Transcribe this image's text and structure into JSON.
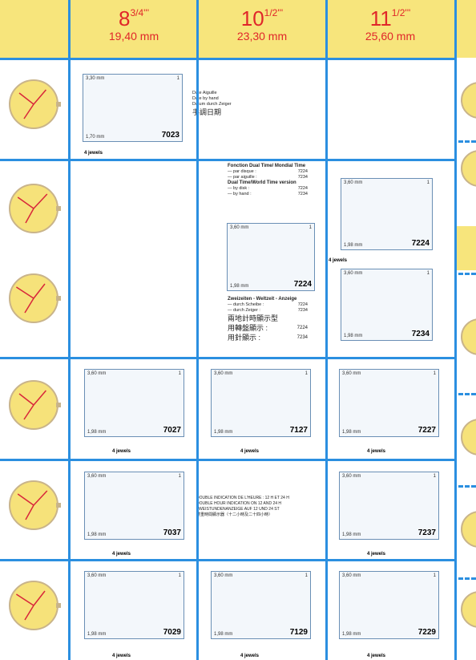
{
  "header": {
    "columns": [
      {
        "size": "8",
        "fraction": "3/4'''",
        "diameter": "19,40 mm"
      },
      {
        "size": "10",
        "fraction": "1/2'''",
        "diameter": "23,30 mm"
      },
      {
        "size": "11",
        "fraction": "1/2'''",
        "diameter": "25,60 mm"
      }
    ]
  },
  "movements": [
    {
      "height": "3,30 mm",
      "base": "1,70 mm",
      "count": "1",
      "caliber": "7023",
      "jewels": "4 jewels"
    },
    {
      "height": "3,60 mm",
      "base": "1,98 mm",
      "count": "1",
      "caliber": "7224"
    },
    {
      "height": "3,60 mm",
      "base": "1,98 mm",
      "count": "1",
      "caliber": "7224",
      "jewels": "4 jewels"
    },
    {
      "height": "3,60 mm",
      "base": "1,98 mm",
      "count": "1",
      "caliber": "7234"
    },
    {
      "height": "3,60 mm",
      "base": "1,98 mm",
      "count": "1",
      "caliber": "7027",
      "jewels": "4 jewels"
    },
    {
      "height": "3,60 mm",
      "base": "1,98 mm",
      "count": "1",
      "caliber": "7127",
      "jewels": "4 jewels"
    },
    {
      "height": "3,60 mm",
      "base": "1,98 mm",
      "count": "1",
      "caliber": "7227",
      "jewels": "4 jewels"
    },
    {
      "height": "3,60 mm",
      "base": "1,98 mm",
      "count": "1",
      "caliber": "7037",
      "jewels": "4 jewels"
    },
    {
      "height": "3,60 mm",
      "base": "1,98 mm",
      "count": "1",
      "caliber": "7237",
      "jewels": "4 jewels"
    },
    {
      "height": "3,60 mm",
      "base": "1,98 mm",
      "count": "1",
      "caliber": "7029",
      "jewels": "4 jewels"
    },
    {
      "height": "3,60 mm",
      "base": "1,98 mm",
      "count": "1",
      "caliber": "7129",
      "jewels": "4 jewels"
    },
    {
      "height": "3,60 mm",
      "base": "1,98 mm",
      "count": "1",
      "caliber": "7229",
      "jewels": "4 jewels"
    }
  ],
  "notes": {
    "date_hand": [
      "Date Aiguille",
      "Date by hand",
      "Datum durch Zeiger",
      "手調日期"
    ],
    "dual_time": {
      "french_title": "Fonction Dual Time/ Mondial Time",
      "french": [
        [
          "— par disque :",
          "7224"
        ],
        [
          "— par aiguille :",
          "7234"
        ]
      ],
      "english_title": "Dual Time/World Time version",
      "english": [
        [
          "— by disk :",
          "7224"
        ],
        [
          "— by hand :",
          "7234"
        ]
      ],
      "german_title": "Zweizeiten - Weltzeit - Anzeige",
      "german": [
        [
          "— durch Scheibe :",
          "7224"
        ],
        [
          "— durch Zeiger :",
          "7234"
        ]
      ],
      "chinese_title": "兩地計時顯示型",
      "chinese": [
        [
          "用轉盤顯示 :",
          "7224"
        ],
        [
          "用針顯示 :",
          "7234"
        ]
      ]
    },
    "double_hour": [
      "DOUBLE INDICATION DE L'HEURE : 12 H ET 24 H",
      "DOUBLE HOUR INDICATION ON 12 AND 24 H",
      "ZWEISTUNDENANZEIGE AUF 12 UND 24 ST",
      "雙重時間顯示器（十二小時及二十四小時）"
    ]
  }
}
